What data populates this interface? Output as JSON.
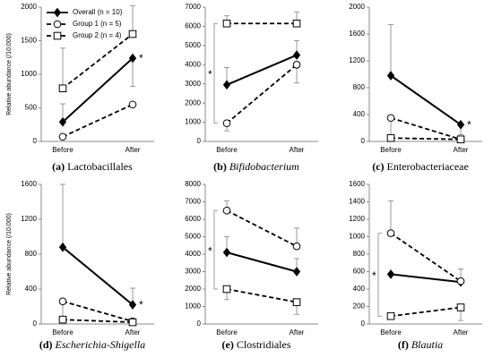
{
  "chart_data": [
    {
      "type": "line",
      "label": "(a)",
      "caption": "Lactobacillales",
      "italic": false,
      "ylabel": "Relative abundance (/10,000)",
      "categories": [
        "Before",
        "After"
      ],
      "ylim": [
        0,
        2000
      ],
      "yticks": [
        0,
        500,
        1000,
        1500,
        2000
      ],
      "legend": "upper left",
      "annotation": "*",
      "annotation_at": "after",
      "series": [
        {
          "name": "Overall (n = 10)",
          "color": "#000000",
          "marker": "diamond",
          "dashed": false,
          "values": [
            290,
            1240
          ],
          "errors": [
            270,
            420
          ],
          "error_side": [
            "up",
            "down"
          ]
        },
        {
          "name": "Group 1 (n = 5)",
          "color": "#000000",
          "marker": "circle",
          "dashed": true,
          "values": [
            70,
            550
          ],
          "errors": [
            null,
            null
          ],
          "error_side": [
            "up",
            "up"
          ]
        },
        {
          "name": "Group 2 (n = 4)",
          "color": "#000000",
          "marker": "square",
          "dashed": true,
          "values": [
            790,
            1600
          ],
          "errors": [
            600,
            420
          ],
          "error_side": [
            "up",
            "up"
          ]
        }
      ]
    },
    {
      "type": "line",
      "label": "(b)",
      "caption": "Bifidobacterium",
      "italic": true,
      "categories": [
        "Before",
        "After"
      ],
      "ylim": [
        0,
        7000
      ],
      "yticks": [
        0,
        1000,
        2000,
        3000,
        4000,
        5000,
        6000,
        7000
      ],
      "annotation": "*",
      "annotation_at": "before",
      "series": [
        {
          "color": "#000000",
          "marker": "diamond",
          "dashed": false,
          "values": [
            2950,
            4500
          ],
          "errors": [
            900,
            750
          ],
          "error_side": [
            "up",
            "up"
          ]
        },
        {
          "color": "#000000",
          "marker": "circle",
          "dashed": true,
          "values": [
            950,
            4000
          ],
          "errors": [
            400,
            950
          ],
          "error_side": [
            "down",
            "down"
          ]
        },
        {
          "color": "#000000",
          "marker": "square",
          "dashed": true,
          "values": [
            6150,
            6150
          ],
          "errors": [
            400,
            600
          ],
          "error_side": [
            "up",
            "up"
          ]
        }
      ]
    },
    {
      "type": "line",
      "label": "(c)",
      "caption": "Enterobacteriaceae",
      "italic": false,
      "categories": [
        "Before",
        "After"
      ],
      "ylim": [
        0,
        2000
      ],
      "yticks": [
        0,
        400,
        800,
        1200,
        1600,
        2000
      ],
      "annotation": "*",
      "annotation_at": "after",
      "series": [
        {
          "color": "#000000",
          "marker": "diamond",
          "dashed": false,
          "values": [
            980,
            250
          ],
          "errors": [
            760,
            150
          ],
          "error_side": [
            "up",
            "down"
          ]
        },
        {
          "color": "#000000",
          "marker": "circle",
          "dashed": true,
          "values": [
            350,
            30
          ],
          "errors": [
            340,
            null
          ],
          "error_side": [
            "down",
            "up"
          ]
        },
        {
          "color": "#000000",
          "marker": "square",
          "dashed": true,
          "values": [
            50,
            30
          ],
          "errors": [
            null,
            null
          ],
          "error_side": [
            "up",
            "up"
          ]
        }
      ]
    },
    {
      "type": "line",
      "label": "(d)",
      "caption": "Escherichia-Shigella",
      "italic": true,
      "ylabel": "Relative abundance (/10,000)",
      "categories": [
        "Before",
        "After"
      ],
      "ylim": [
        0,
        1600
      ],
      "yticks": [
        0,
        400,
        800,
        1200,
        1600
      ],
      "annotation": "*",
      "annotation_at": "after",
      "series": [
        {
          "color": "#000000",
          "marker": "diamond",
          "dashed": false,
          "values": [
            880,
            220
          ],
          "errors": [
            720,
            190
          ],
          "error_side": [
            "up",
            "up"
          ]
        },
        {
          "color": "#000000",
          "marker": "circle",
          "dashed": true,
          "values": [
            260,
            30
          ],
          "errors": [
            250,
            null
          ],
          "error_side": [
            "down",
            "up"
          ]
        },
        {
          "color": "#000000",
          "marker": "square",
          "dashed": true,
          "values": [
            50,
            20
          ],
          "errors": [
            null,
            null
          ],
          "error_side": [
            "up",
            "up"
          ]
        }
      ]
    },
    {
      "type": "line",
      "label": "(e)",
      "caption": "Clostridiales",
      "italic": false,
      "categories": [
        "Before",
        "After"
      ],
      "ylim": [
        0,
        8000
      ],
      "yticks": [
        0,
        1000,
        2000,
        3000,
        4000,
        5000,
        6000,
        7000,
        8000
      ],
      "annotation": "*",
      "annotation_at": "before",
      "series": [
        {
          "color": "#000000",
          "marker": "diamond",
          "dashed": false,
          "values": [
            4100,
            3000
          ],
          "errors": [
            900,
            750
          ],
          "error_side": [
            "up",
            "up"
          ]
        },
        {
          "color": "#000000",
          "marker": "circle",
          "dashed": true,
          "values": [
            6500,
            4450
          ],
          "errors": [
            550,
            1050
          ],
          "error_side": [
            "up",
            "up"
          ]
        },
        {
          "color": "#000000",
          "marker": "square",
          "dashed": true,
          "values": [
            2000,
            1250
          ],
          "errors": [
            600,
            700
          ],
          "error_side": [
            "down",
            "down"
          ]
        }
      ]
    },
    {
      "type": "line",
      "label": "(f)",
      "caption": "Blautia",
      "italic": true,
      "categories": [
        "Before",
        "After"
      ],
      "ylim": [
        0,
        1600
      ],
      "yticks": [
        0,
        200,
        400,
        600,
        800,
        1000,
        1200,
        1400,
        1600
      ],
      "annotation": "*",
      "annotation_at": "before",
      "series": [
        {
          "color": "#000000",
          "marker": "diamond",
          "dashed": false,
          "values": [
            570,
            480
          ],
          "errors": [
            null,
            150
          ],
          "error_side": [
            "up",
            "up"
          ]
        },
        {
          "color": "#000000",
          "marker": "circle",
          "dashed": true,
          "values": [
            1040,
            490
          ],
          "errors": [
            370,
            140
          ],
          "error_side": [
            "up",
            "up"
          ]
        },
        {
          "color": "#000000",
          "marker": "square",
          "dashed": true,
          "values": [
            90,
            190
          ],
          "errors": [
            null,
            150
          ],
          "error_side": [
            "up",
            "down"
          ]
        }
      ]
    }
  ]
}
